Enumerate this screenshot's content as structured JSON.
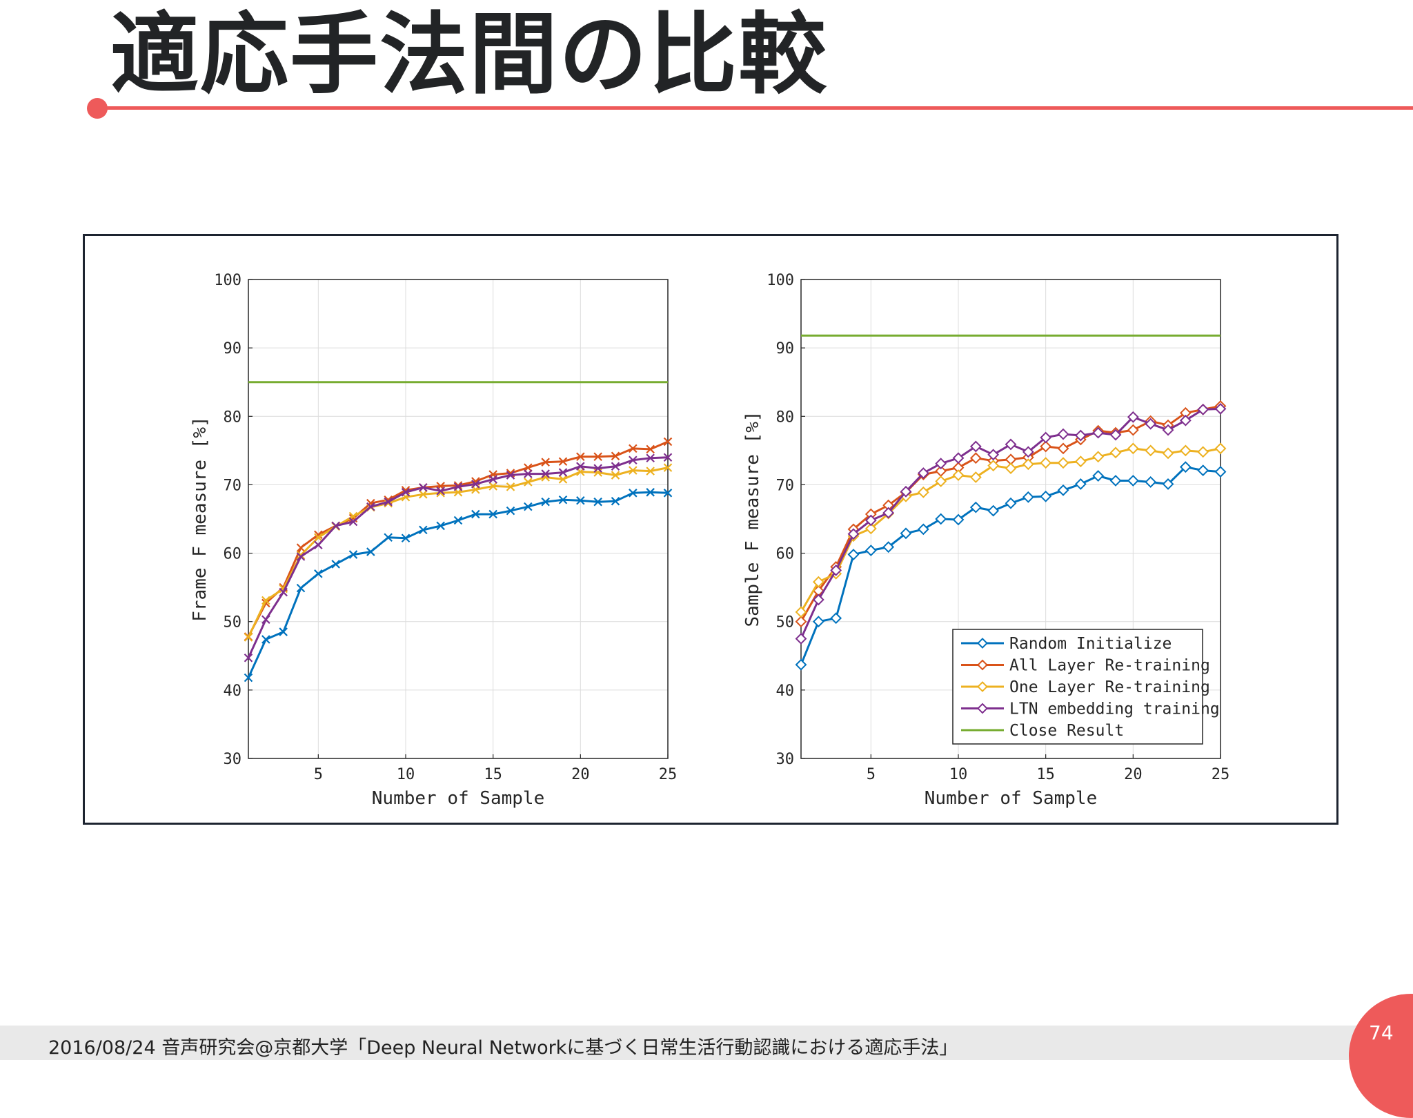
{
  "slide": {
    "title": "適応手法間の比較",
    "footer": "2016/08/24  音声研究会@京都大学「Deep Neural Networkに基づく日常生活行動認識における適応手法」",
    "page_number": "74",
    "accent_color": "#ee5a5a"
  },
  "chart_data": [
    {
      "type": "line",
      "xlabel": "Number of Sample",
      "ylabel": "Frame F measure [%]",
      "xlim": [
        1,
        25
      ],
      "ylim": [
        30,
        100
      ],
      "xticks": [
        5,
        10,
        15,
        20,
        25
      ],
      "yticks": [
        30,
        40,
        50,
        60,
        70,
        80,
        90,
        100
      ],
      "grid": true,
      "marker": "x",
      "x": [
        1,
        2,
        3,
        4,
        5,
        6,
        7,
        8,
        9,
        10,
        11,
        12,
        13,
        14,
        15,
        16,
        17,
        18,
        19,
        20,
        21,
        22,
        23,
        24,
        25
      ],
      "series": [
        {
          "name": "Random Initialize",
          "color": "#0072bd",
          "values": [
            41.8,
            47.4,
            48.5,
            54.9,
            57.0,
            58.4,
            59.8,
            60.2,
            62.3,
            62.2,
            63.4,
            64.0,
            64.8,
            65.7,
            65.7,
            66.2,
            66.8,
            67.5,
            67.8,
            67.7,
            67.5,
            67.6,
            68.8,
            68.9,
            68.8
          ]
        },
        {
          "name": "All Layer Re-training",
          "color": "#d95319",
          "values": [
            47.8,
            52.7,
            55.0,
            60.8,
            62.7,
            64.0,
            65.1,
            67.3,
            67.8,
            69.2,
            69.6,
            69.8,
            69.9,
            70.5,
            71.5,
            71.7,
            72.5,
            73.3,
            73.4,
            74.1,
            74.1,
            74.2,
            75.3,
            75.2,
            76.3
          ]
        },
        {
          "name": "One Layer Re-training",
          "color": "#edb120",
          "values": [
            47.7,
            53.1,
            54.8,
            59.7,
            62.3,
            63.9,
            65.4,
            66.7,
            67.3,
            68.2,
            68.6,
            68.8,
            68.9,
            69.3,
            69.8,
            69.7,
            70.4,
            71.1,
            70.8,
            71.9,
            71.8,
            71.4,
            72.1,
            72.0,
            72.5
          ]
        },
        {
          "name": "LTN embedding training",
          "color": "#7e2f8e",
          "values": [
            44.7,
            50.3,
            54.3,
            59.5,
            61.2,
            64.0,
            64.6,
            66.8,
            67.5,
            68.9,
            69.6,
            69.1,
            69.7,
            70.1,
            70.8,
            71.4,
            71.6,
            71.6,
            71.8,
            72.7,
            72.4,
            72.7,
            73.6,
            73.9,
            74.0
          ]
        },
        {
          "name": "Close Result",
          "color": "#77ac30",
          "constant": 85.0
        }
      ]
    },
    {
      "type": "line",
      "xlabel": "Number of Sample",
      "ylabel": "Sample F measure [%]",
      "xlim": [
        1,
        25
      ],
      "ylim": [
        30,
        100
      ],
      "xticks": [
        5,
        10,
        15,
        20,
        25
      ],
      "yticks": [
        30,
        40,
        50,
        60,
        70,
        80,
        90,
        100
      ],
      "grid": true,
      "marker": "diamond",
      "legend": "bottom-right",
      "x": [
        1,
        2,
        3,
        4,
        5,
        6,
        7,
        8,
        9,
        10,
        11,
        12,
        13,
        14,
        15,
        16,
        17,
        18,
        19,
        20,
        21,
        22,
        23,
        24,
        25
      ],
      "series": [
        {
          "name": "Random Initialize",
          "color": "#0072bd",
          "values": [
            43.7,
            50.0,
            50.5,
            59.8,
            60.4,
            60.9,
            62.9,
            63.5,
            65.0,
            64.9,
            66.7,
            66.2,
            67.3,
            68.2,
            68.3,
            69.2,
            70.1,
            71.3,
            70.6,
            70.6,
            70.4,
            70.1,
            72.6,
            72.1,
            71.9
          ]
        },
        {
          "name": "All Layer Re-training",
          "color": "#d95319",
          "values": [
            50.0,
            54.5,
            58.0,
            63.5,
            65.7,
            67.0,
            68.9,
            71.5,
            72.0,
            72.5,
            73.9,
            73.5,
            73.7,
            74.0,
            75.6,
            75.3,
            76.6,
            77.9,
            77.6,
            78.0,
            79.3,
            78.7,
            80.5,
            81.0,
            81.5
          ]
        },
        {
          "name": "One Layer Re-training",
          "color": "#edb120",
          "values": [
            51.4,
            55.8,
            57.0,
            62.5,
            63.6,
            65.8,
            68.3,
            68.9,
            70.5,
            71.4,
            71.1,
            72.8,
            72.4,
            73.0,
            73.2,
            73.2,
            73.4,
            74.1,
            74.7,
            75.3,
            75.0,
            74.6,
            75.0,
            74.8,
            75.3
          ]
        },
        {
          "name": "LTN embedding training",
          "color": "#7e2f8e",
          "values": [
            47.5,
            53.2,
            57.5,
            62.8,
            64.8,
            65.9,
            69.0,
            71.7,
            73.1,
            73.9,
            75.6,
            74.4,
            75.9,
            74.8,
            76.9,
            77.4,
            77.2,
            77.6,
            77.3,
            79.9,
            78.9,
            78.0,
            79.4,
            81.0,
            81.1
          ]
        },
        {
          "name": "Close Result",
          "color": "#77ac30",
          "constant": 91.8
        }
      ]
    }
  ]
}
